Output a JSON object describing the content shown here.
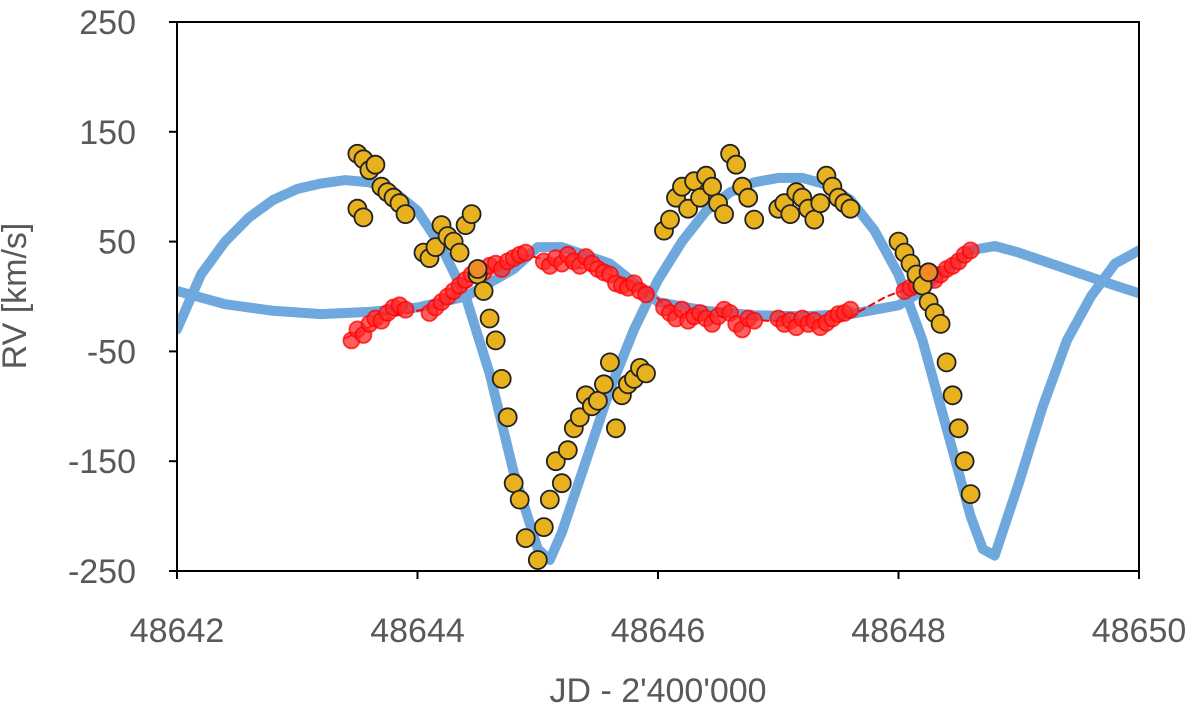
{
  "chart_data": {
    "type": "scatter",
    "title": "",
    "xlabel": "JD - 2'400'000",
    "ylabel": "RV [km/s]",
    "xlim": [
      48642,
      48650
    ],
    "ylim": [
      -250,
      250
    ],
    "x_ticks": [
      "48642",
      "48644",
      "48646",
      "48648",
      "48650"
    ],
    "y_ticks": [
      "250",
      "150",
      "50",
      "-50",
      "-150",
      "-250"
    ],
    "grid": false,
    "legend": "none",
    "series": [
      {
        "kind": "line",
        "color": "#6fa8dc",
        "x": [
          48642.0,
          48642.2,
          48642.4,
          48642.6,
          48642.8,
          48643.0,
          48643.2,
          48643.4,
          48643.6,
          48643.8,
          48644.0,
          48644.2,
          48644.4,
          48644.6,
          48644.8,
          48645.0,
          48645.1,
          48645.2,
          48645.4,
          48645.6,
          48645.8,
          48646.0,
          48646.2,
          48646.4,
          48646.6,
          48646.8,
          48647.0,
          48647.2,
          48647.4,
          48647.6,
          48647.8,
          48648.0,
          48648.2,
          48648.4,
          48648.6,
          48648.7,
          48648.8,
          48649.0,
          48649.2,
          48649.4,
          48649.6,
          48649.8,
          48650.0
        ],
        "y": [
          -30,
          20,
          50,
          72,
          88,
          98,
          103,
          106,
          104,
          96,
          78,
          45,
          0,
          -70,
          -160,
          -230,
          -240,
          -215,
          -150,
          -85,
          -30,
          15,
          50,
          78,
          95,
          104,
          108,
          108,
          102,
          88,
          60,
          20,
          -40,
          -120,
          -200,
          -230,
          -236,
          -170,
          -100,
          -40,
          0,
          30,
          42
        ]
      },
      {
        "kind": "line",
        "color": "#6fa8dc",
        "x": [
          48642.0,
          48642.4,
          48642.8,
          48643.2,
          48643.6,
          48644.0,
          48644.4,
          48644.8,
          48645.0,
          48645.2,
          48645.6,
          48646.0,
          48646.4,
          48646.8,
          48647.2,
          48647.6,
          48648.0,
          48648.2,
          48648.4,
          48648.6,
          48648.8,
          48649.0,
          48649.4,
          48649.8,
          48650.0
        ],
        "y": [
          5,
          -7,
          -13,
          -16,
          -14,
          -10,
          0,
          25,
          45,
          45,
          30,
          -5,
          -13,
          -17,
          -18,
          -16,
          -8,
          5,
          25,
          42,
          46,
          40,
          25,
          10,
          3
        ]
      },
      {
        "kind": "line",
        "color": "#ff0000",
        "dashed": true,
        "x": [
          48643.4,
          48643.8,
          48644.2,
          48644.6,
          48644.9,
          48645.2,
          48645.6,
          48645.9,
          48646.1,
          48646.5,
          48646.9,
          48647.3,
          48647.6,
          48647.9,
          48648.1,
          48648.3,
          48648.6
        ],
        "y": [
          -38,
          -18,
          -8,
          22,
          38,
          30,
          20,
          8,
          -12,
          -18,
          -22,
          -24,
          -18,
          0,
          8,
          18,
          40
        ]
      },
      {
        "kind": "points",
        "fill": "#ff2a2a",
        "stroke": "#ff0000",
        "opacity": 0.75,
        "r": 8,
        "x": [
          48643.45,
          48643.5,
          48643.55,
          48643.6,
          48643.65,
          48643.7,
          48643.75,
          48643.8,
          48643.85,
          48643.9,
          48644.1,
          48644.15,
          48644.2,
          48644.25,
          48644.3,
          48644.35,
          48644.4,
          48644.45,
          48644.5,
          48644.55,
          48644.6,
          48644.65,
          48644.7,
          48644.75,
          48644.8,
          48644.85,
          48644.9,
          48645.05,
          48645.1,
          48645.15,
          48645.2,
          48645.25,
          48645.3,
          48645.35,
          48645.4,
          48645.45,
          48645.5,
          48645.55,
          48645.6,
          48645.65,
          48645.7,
          48645.75,
          48645.8,
          48645.85,
          48645.9,
          48646.05,
          48646.1,
          48646.15,
          48646.2,
          48646.25,
          48646.3,
          48646.35,
          48646.4,
          48646.45,
          48646.5,
          48646.55,
          48646.6,
          48646.65,
          48646.7,
          48646.75,
          48646.8,
          48647.0,
          48647.05,
          48647.1,
          48647.15,
          48647.2,
          48647.25,
          48647.3,
          48647.35,
          48647.4,
          48647.45,
          48647.5,
          48647.55,
          48647.6,
          48648.05,
          48648.1,
          48648.15,
          48648.2,
          48648.25,
          48648.3,
          48648.35,
          48648.4,
          48648.45,
          48648.5,
          48648.55,
          48648.6
        ],
        "y": [
          -40,
          -30,
          -35,
          -25,
          -20,
          -22,
          -15,
          -10,
          -8,
          -12,
          -15,
          -10,
          -5,
          0,
          5,
          10,
          15,
          20,
          25,
          22,
          28,
          30,
          25,
          32,
          35,
          38,
          40,
          32,
          28,
          35,
          30,
          38,
          32,
          28,
          36,
          30,
          25,
          22,
          20,
          12,
          10,
          8,
          12,
          5,
          2,
          -10,
          -15,
          -20,
          -12,
          -22,
          -18,
          -15,
          -20,
          -25,
          -18,
          -12,
          -15,
          -25,
          -30,
          -20,
          -22,
          -20,
          -25,
          -22,
          -28,
          -20,
          -25,
          -22,
          -28,
          -24,
          -20,
          -16,
          -15,
          -12,
          5,
          8,
          10,
          12,
          18,
          15,
          20,
          25,
          28,
          32,
          38,
          42
        ]
      },
      {
        "kind": "points",
        "fill": "#e8b21f",
        "stroke": "#222222",
        "opacity": 1,
        "r": 9,
        "x": [
          48643.5,
          48643.55,
          48643.6,
          48643.65,
          48643.7,
          48643.75,
          48643.8,
          48643.85,
          48643.9,
          48643.5,
          48643.55,
          48644.05,
          48644.1,
          48644.15,
          48644.2,
          48644.25,
          48644.3,
          48644.35,
          48644.4,
          48644.45,
          48644.5,
          48644.55,
          48644.6,
          48644.65,
          48644.7,
          48644.75,
          48644.8,
          48644.85,
          48644.9,
          48645.0,
          48645.05,
          48645.1,
          48645.15,
          48645.2,
          48645.25,
          48645.3,
          48645.35,
          48645.4,
          48645.45,
          48645.5,
          48645.55,
          48645.6,
          48645.65,
          48645.7,
          48645.75,
          48645.8,
          48645.85,
          48645.9,
          48646.05,
          48646.1,
          48646.15,
          48646.2,
          48646.25,
          48646.3,
          48646.35,
          48646.4,
          48646.45,
          48646.5,
          48646.55,
          48646.6,
          48646.65,
          48646.7,
          48646.75,
          48646.8,
          48647.0,
          48647.05,
          48647.1,
          48647.15,
          48647.2,
          48647.25,
          48647.3,
          48647.35,
          48647.4,
          48647.45,
          48647.5,
          48647.55,
          48647.6,
          48648.0,
          48648.05,
          48648.1,
          48648.15,
          48648.2,
          48648.25,
          48648.3,
          48648.35,
          48648.4,
          48648.45,
          48648.5,
          48648.55,
          48648.6
        ],
        "y": [
          130,
          125,
          115,
          120,
          100,
          95,
          90,
          85,
          75,
          80,
          72,
          40,
          35,
          45,
          65,
          55,
          50,
          40,
          65,
          75,
          20,
          5,
          -20,
          -40,
          -75,
          -110,
          -170,
          -185,
          -220,
          -240,
          -210,
          -185,
          -150,
          -170,
          -140,
          -120,
          -110,
          -90,
          -100,
          -95,
          -80,
          -60,
          -120,
          -90,
          -80,
          -75,
          -65,
          -70,
          60,
          70,
          90,
          100,
          80,
          105,
          90,
          110,
          100,
          85,
          75,
          130,
          120,
          100,
          90,
          70,
          80,
          85,
          75,
          95,
          90,
          80,
          70,
          85,
          110,
          100,
          90,
          85,
          80,
          50,
          40,
          30,
          20,
          10,
          -5,
          -15,
          -25,
          -60,
          -90,
          -120,
          -150,
          -180
        ]
      },
      {
        "kind": "points",
        "fill": "#f08a24",
        "stroke": "#222222",
        "opacity": 1,
        "r": 9,
        "x": [
          48644.5,
          48648.25
        ],
        "y": [
          25,
          22
        ]
      }
    ]
  }
}
